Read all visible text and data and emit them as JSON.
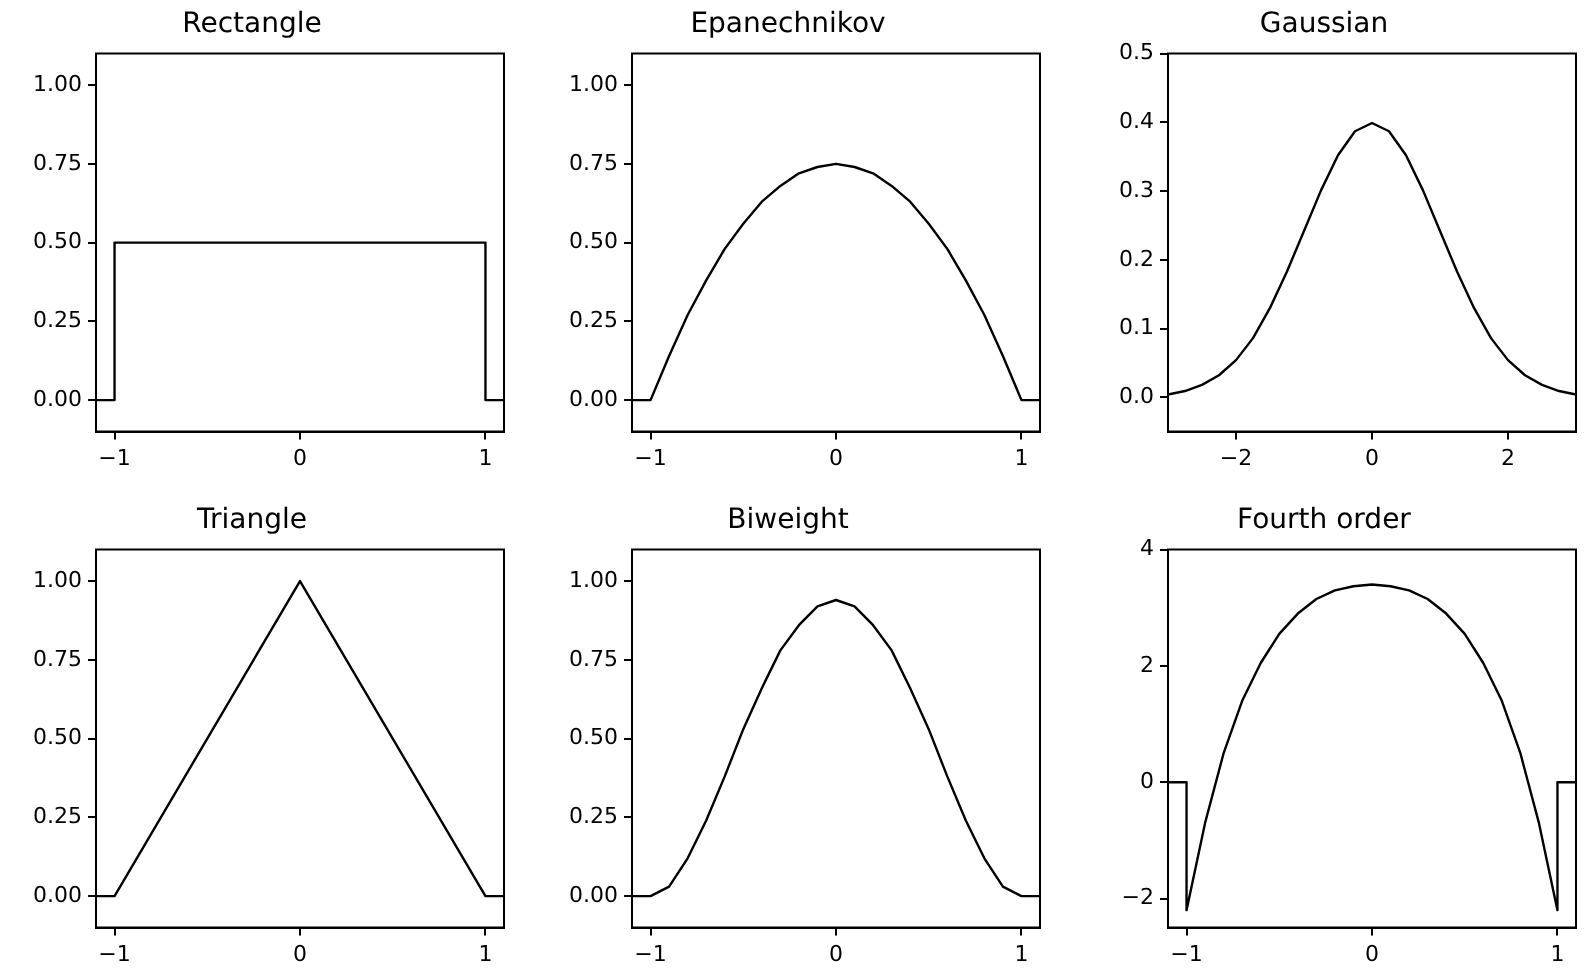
{
  "chart_data": [
    {
      "type": "line",
      "title": "Rectangle",
      "x": [
        -1.1,
        -1,
        -1,
        1,
        1,
        1.1
      ],
      "series": [
        {
          "color": "#000000",
          "values": [
            0,
            0,
            0.5,
            0.5,
            0,
            0
          ]
        }
      ],
      "xlim": [
        -1.1,
        1.1
      ],
      "ylim": [
        -0.1,
        1.1
      ],
      "xticks": [
        -1,
        0,
        1
      ],
      "yticks": [
        {
          "value": 0,
          "label": "0.00"
        },
        {
          "value": 0.25,
          "label": "0.25"
        },
        {
          "value": 0.5,
          "label": "0.50"
        },
        {
          "value": 0.75,
          "label": "0.75"
        },
        {
          "value": 1,
          "label": "1.00"
        }
      ]
    },
    {
      "type": "line",
      "title": "Epanechnikov",
      "x": [
        -1.1,
        -1,
        -0.9,
        -0.8,
        -0.7,
        -0.6,
        -0.5,
        -0.4,
        -0.3,
        -0.2,
        -0.1,
        0,
        0.1,
        0.2,
        0.3,
        0.4,
        0.5,
        0.6,
        0.7,
        0.8,
        0.9,
        1,
        1.1
      ],
      "series": [
        {
          "color": "#000000",
          "values": [
            0,
            0,
            0.14,
            0.27,
            0.38,
            0.48,
            0.56,
            0.63,
            0.68,
            0.72,
            0.74,
            0.75,
            0.74,
            0.72,
            0.68,
            0.63,
            0.56,
            0.48,
            0.38,
            0.27,
            0.14,
            0,
            0
          ]
        }
      ],
      "xlim": [
        -1.1,
        1.1
      ],
      "ylim": [
        -0.1,
        1.1
      ],
      "xticks": [
        -1,
        0,
        1
      ],
      "yticks": [
        {
          "value": 0,
          "label": "0.00"
        },
        {
          "value": 0.25,
          "label": "0.25"
        },
        {
          "value": 0.5,
          "label": "0.50"
        },
        {
          "value": 0.75,
          "label": "0.75"
        },
        {
          "value": 1,
          "label": "1.00"
        }
      ]
    },
    {
      "type": "line",
      "title": "Gaussian",
      "x": [
        -3,
        -2.75,
        -2.5,
        -2.25,
        -2,
        -1.75,
        -1.5,
        -1.25,
        -1,
        -0.75,
        -0.5,
        -0.25,
        0,
        0.25,
        0.5,
        0.75,
        1,
        1.25,
        1.5,
        1.75,
        2,
        2.25,
        2.5,
        2.75,
        3
      ],
      "series": [
        {
          "color": "#000000",
          "values": [
            0.004,
            0.009,
            0.018,
            0.032,
            0.054,
            0.086,
            0.13,
            0.183,
            0.242,
            0.301,
            0.352,
            0.387,
            0.399,
            0.387,
            0.352,
            0.301,
            0.242,
            0.183,
            0.13,
            0.086,
            0.054,
            0.032,
            0.018,
            0.009,
            0.004
          ]
        }
      ],
      "xlim": [
        -3,
        3
      ],
      "ylim": [
        -0.05,
        0.5
      ],
      "xticks": [
        -2,
        0,
        2
      ],
      "yticks": [
        {
          "value": 0,
          "label": "0.0"
        },
        {
          "value": 0.1,
          "label": "0.1"
        },
        {
          "value": 0.2,
          "label": "0.2"
        },
        {
          "value": 0.3,
          "label": "0.3"
        },
        {
          "value": 0.4,
          "label": "0.4"
        },
        {
          "value": 0.5,
          "label": "0.5"
        }
      ]
    },
    {
      "type": "line",
      "title": "Triangle",
      "x": [
        -1.1,
        -1,
        0,
        1,
        1.1
      ],
      "series": [
        {
          "color": "#000000",
          "values": [
            0,
            0,
            1,
            0,
            0
          ]
        }
      ],
      "xlim": [
        -1.1,
        1.1
      ],
      "ylim": [
        -0.1,
        1.1
      ],
      "xticks": [
        -1,
        0,
        1
      ],
      "yticks": [
        {
          "value": 0,
          "label": "0.00"
        },
        {
          "value": 0.25,
          "label": "0.25"
        },
        {
          "value": 0.5,
          "label": "0.50"
        },
        {
          "value": 0.75,
          "label": "0.75"
        },
        {
          "value": 1,
          "label": "1.00"
        }
      ]
    },
    {
      "type": "line",
      "title": "Biweight",
      "x": [
        -1.1,
        -1,
        -0.9,
        -0.8,
        -0.7,
        -0.6,
        -0.5,
        -0.4,
        -0.3,
        -0.2,
        -0.1,
        0,
        0.1,
        0.2,
        0.3,
        0.4,
        0.5,
        0.6,
        0.7,
        0.8,
        0.9,
        1,
        1.1
      ],
      "series": [
        {
          "color": "#000000",
          "values": [
            0,
            0,
            0.03,
            0.12,
            0.24,
            0.38,
            0.53,
            0.66,
            0.78,
            0.86,
            0.92,
            0.94,
            0.92,
            0.86,
            0.78,
            0.66,
            0.53,
            0.38,
            0.24,
            0.12,
            0.03,
            0,
            0
          ]
        }
      ],
      "xlim": [
        -1.1,
        1.1
      ],
      "ylim": [
        -0.1,
        1.1
      ],
      "xticks": [
        -1,
        0,
        1
      ],
      "yticks": [
        {
          "value": 0,
          "label": "0.00"
        },
        {
          "value": 0.25,
          "label": "0.25"
        },
        {
          "value": 0.5,
          "label": "0.50"
        },
        {
          "value": 0.75,
          "label": "0.75"
        },
        {
          "value": 1,
          "label": "1.00"
        }
      ]
    },
    {
      "type": "line",
      "title": "Fourth order",
      "x": [
        -1.1,
        -1,
        -1,
        -0.9,
        -0.8,
        -0.7,
        -0.6,
        -0.5,
        -0.4,
        -0.3,
        -0.2,
        -0.1,
        0,
        0.1,
        0.2,
        0.3,
        0.4,
        0.5,
        0.6,
        0.7,
        0.8,
        0.9,
        1,
        1,
        1.1
      ],
      "series": [
        {
          "color": "#000000",
          "values": [
            0,
            0,
            -2.2,
            -0.7,
            0.5,
            1.4,
            2.05,
            2.55,
            2.9,
            3.15,
            3.3,
            3.37,
            3.4,
            3.37,
            3.3,
            3.15,
            2.9,
            2.55,
            2.05,
            1.4,
            0.5,
            -0.7,
            -2.2,
            0,
            0
          ]
        }
      ],
      "xlim": [
        -1.1,
        1.1
      ],
      "ylim": [
        -2.5,
        4
      ],
      "xticks": [
        -1,
        0,
        1
      ],
      "yticks": [
        -2,
        0,
        2,
        4
      ]
    }
  ]
}
